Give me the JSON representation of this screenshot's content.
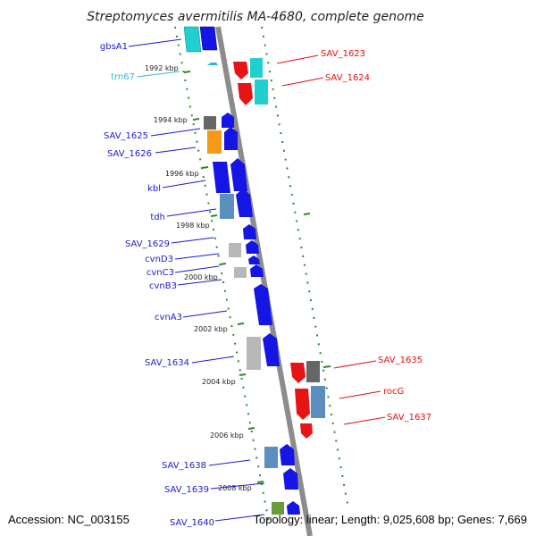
{
  "title": "Streptomyces avermitilis MA-4680, complete genome",
  "footer": {
    "accession": "Accession: NC_003155",
    "summary": "Topology: linear; Length: 9,025,608 bp; Genes: 7,669"
  },
  "colors": {
    "backbone": "#8c8c8c",
    "tick": "#2a8a2a",
    "left_label": "#1a1ad6",
    "right_label": "#e01010",
    "trna_label": "#28b8e0",
    "blue": "#1515e6",
    "red": "#e61414",
    "cyan": "#20d0d0",
    "steel": "#5b8fc0",
    "gray": "#666666",
    "lightgray": "#b8b8b8",
    "orange": "#f59a18",
    "olive": "#6a9a3a"
  },
  "kbp_labels": [
    "1992 kbp",
    "1994 kbp",
    "1996 kbp",
    "1998 kbp",
    "2000 kbp",
    "2002 kbp",
    "2004 kbp",
    "2006 kbp",
    "2008 kbp"
  ],
  "left_labels": [
    "gbsA1",
    "trn67",
    "SAV_1625",
    "SAV_1626",
    "kbl",
    "tdh",
    "SAV_1629",
    "cvnD3",
    "cvnC3",
    "cvnB3",
    "cvnA3",
    "SAV_1634",
    "SAV_1638",
    "SAV_1639",
    "SAV_1640"
  ],
  "right_labels": [
    "SAV_1623",
    "SAV_1624",
    "SAV_1635",
    "rocG",
    "SAV_1637"
  ]
}
